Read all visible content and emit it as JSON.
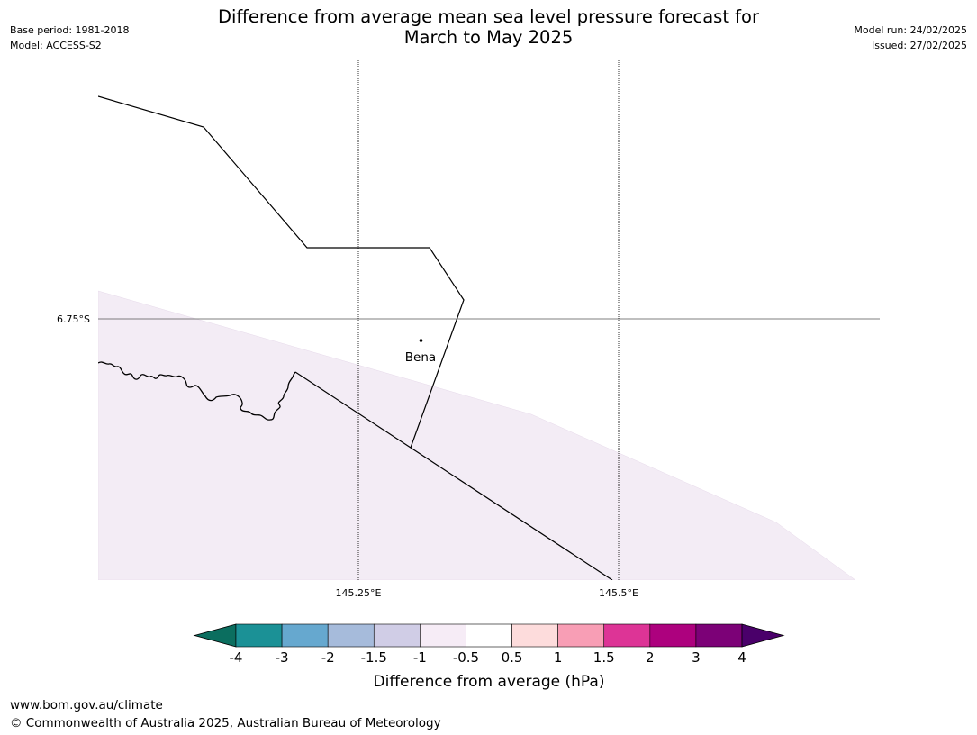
{
  "header": {
    "title_line1": "Difference from average mean sea level pressure forecast for",
    "title_line2": "March to May 2025",
    "base_period": "Base period: 1981-2018",
    "model": "Model: ACCESS-S2",
    "model_run": "Model run: 24/02/2025",
    "issued": "Issued: 27/02/2025"
  },
  "map": {
    "gridlines": {
      "latitude_label": "6.75°S",
      "longitude_labels": [
        "145.25°E",
        "145.5°E"
      ]
    },
    "place": {
      "name": "Bena"
    },
    "shaded_region_color": "#f3ecf5"
  },
  "colorbar": {
    "title": "Difference from average (hPa)",
    "tick_labels": [
      "-4",
      "-3",
      "-2",
      "-1.5",
      "-1",
      "-0.5",
      "0.5",
      "1",
      "1.5",
      "2",
      "3",
      "4"
    ],
    "colors": [
      "#0b6e5f",
      "#1b9196",
      "#66a8cf",
      "#a6bbdb",
      "#d0cde6",
      "#f6ecf6",
      "#ffffff",
      "#fddcdc",
      "#f89eb5",
      "#dd3496",
      "#ad017e",
      "#7c0177",
      "#4a006a"
    ]
  },
  "footer": {
    "url": "www.bom.gov.au/climate",
    "copyright": "© Commonwealth of Australia 2025, Australian Bureau of Meteorology"
  }
}
